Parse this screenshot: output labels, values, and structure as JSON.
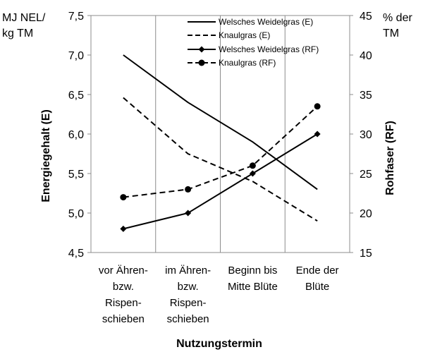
{
  "chart_data": {
    "type": "line",
    "categories": [
      [
        "vor Ähren-",
        "bzw.",
        "Rispen-",
        "schieben"
      ],
      [
        "im Ähren-",
        "bzw.",
        "Rispen-",
        "schieben"
      ],
      [
        "Beginn bis",
        "Mitte Blüte"
      ],
      [
        "Ende der",
        "Blüte"
      ]
    ],
    "xlabel": "Nutzungstermin",
    "ylabel_left": "Energiegehalt (E)",
    "ylabel_right": "Rohfaser (RF)",
    "unit_left": [
      "MJ NEL/",
      "kg TM"
    ],
    "unit_right": [
      "% der",
      "TM"
    ],
    "ylim_left": [
      4.5,
      7.5
    ],
    "ylim_right": [
      15,
      45
    ],
    "yticks_left": [
      "4,5",
      "5,0",
      "5,5",
      "6,0",
      "6,5",
      "7,0",
      "7,5"
    ],
    "yticks_left_values": [
      4.5,
      5.0,
      5.5,
      6.0,
      6.5,
      7.0,
      7.5
    ],
    "yticks_right": [
      "15",
      "20",
      "25",
      "30",
      "35",
      "40",
      "45"
    ],
    "yticks_right_values": [
      15,
      20,
      25,
      30,
      35,
      40,
      45
    ],
    "grid": "vertical",
    "legend_position": "top-right",
    "series": [
      {
        "name": "Welsches Weidelgras (E)",
        "axis": "left",
        "style": "solid",
        "marker": "none",
        "values": [
          7.0,
          6.4,
          5.9,
          5.3
        ]
      },
      {
        "name": "Knaulgras  (E)",
        "axis": "left",
        "style": "dashed",
        "marker": "none",
        "values": [
          6.46,
          5.75,
          5.4,
          4.9
        ]
      },
      {
        "name": "Welsches Weidelgras (RF)",
        "axis": "right",
        "style": "solid",
        "marker": "diamond",
        "values": [
          18,
          20,
          25,
          30
        ]
      },
      {
        "name": "Knaulgras  (RF)",
        "axis": "right",
        "style": "dashed",
        "marker": "circle",
        "values": [
          22,
          23,
          26,
          33.5
        ]
      }
    ]
  }
}
